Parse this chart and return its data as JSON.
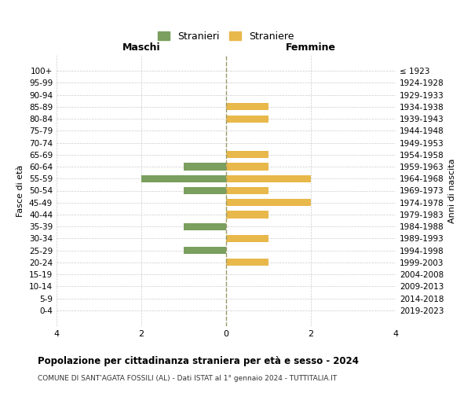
{
  "age_groups": [
    "100+",
    "95-99",
    "90-94",
    "85-89",
    "80-84",
    "75-79",
    "70-74",
    "65-69",
    "60-64",
    "55-59",
    "50-54",
    "45-49",
    "40-44",
    "35-39",
    "30-34",
    "25-29",
    "20-24",
    "15-19",
    "10-14",
    "5-9",
    "0-4"
  ],
  "birth_years": [
    "≤ 1923",
    "1924-1928",
    "1929-1933",
    "1934-1938",
    "1939-1943",
    "1944-1948",
    "1949-1953",
    "1954-1958",
    "1959-1963",
    "1964-1968",
    "1969-1973",
    "1974-1978",
    "1979-1983",
    "1984-1988",
    "1989-1993",
    "1994-1998",
    "1999-2003",
    "2004-2008",
    "2009-2013",
    "2014-2018",
    "2019-2023"
  ],
  "maschi": [
    0,
    0,
    0,
    0,
    0,
    0,
    0,
    0,
    1,
    2,
    1,
    0,
    0,
    1,
    0,
    1,
    0,
    0,
    0,
    0,
    0
  ],
  "femmine": [
    0,
    0,
    0,
    1,
    1,
    0,
    0,
    1,
    1,
    2,
    1,
    2,
    1,
    0,
    1,
    0,
    1,
    0,
    0,
    0,
    0
  ],
  "color_maschi": "#7a9f5e",
  "color_femmine": "#e8b84b",
  "title": "Popolazione per cittadinanza straniera per età e sesso - 2024",
  "subtitle": "COMUNE DI SANT'AGATA FOSSILI (AL) - Dati ISTAT al 1° gennaio 2024 - TUTTITALIA.IT",
  "xlabel_left": "Maschi",
  "xlabel_right": "Femmine",
  "ylabel_left": "Fasce di età",
  "ylabel_right": "Anni di nascita",
  "legend_maschi": "Stranieri",
  "legend_femmine": "Straniere",
  "xlim": 4,
  "background_color": "#ffffff"
}
